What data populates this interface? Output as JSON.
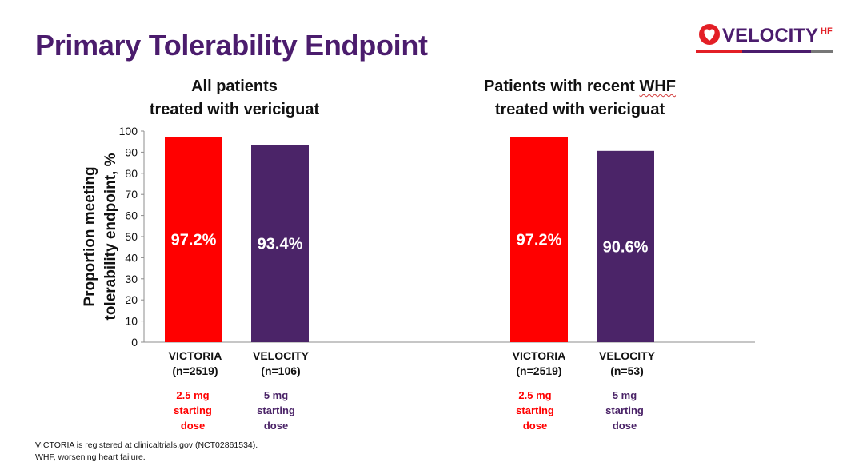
{
  "title": "Primary Tolerability Endpoint",
  "logo": {
    "text": "VELOCITY",
    "superscript": "HF"
  },
  "colors": {
    "victoria": "#ff0000",
    "velocity": "#4b2468",
    "title": "#4b1c6d",
    "victoria_dose": "#ff0000",
    "velocity_dose": "#4b2468"
  },
  "chart_data": [
    {
      "type": "bar",
      "title": "All patients treated with vericiguat",
      "title_lines": [
        "All patients",
        "treated with vericiguat"
      ],
      "ylabel": "Proportion meeting tolerability endpoint, %",
      "ylabel_lines": [
        "Proportion meeting",
        "tolerability endpoint, %"
      ],
      "ylim": [
        0,
        100
      ],
      "yticks": [
        0,
        10,
        20,
        30,
        40,
        50,
        60,
        70,
        80,
        90,
        100
      ],
      "categories": [
        "VICTORIA (n=2519)",
        "VELOCITY (n=106)"
      ],
      "category_lines": [
        [
          "VICTORIA",
          "(n=2519)"
        ],
        [
          "VELOCITY",
          "(n=106)"
        ]
      ],
      "values": [
        97.2,
        93.4
      ],
      "data_labels": [
        "97.2%",
        "93.4%"
      ],
      "dose_lines": [
        [
          "2.5 mg",
          "starting",
          "dose"
        ],
        [
          "5 mg",
          "starting",
          "dose"
        ]
      ]
    },
    {
      "type": "bar",
      "title": "Patients with recent WHF treated with vericiguat",
      "title_lines": [
        "Patients with recent",
        "WHF",
        "treated with vericiguat"
      ],
      "ylim": [
        0,
        100
      ],
      "categories": [
        "VICTORIA (n=2519)",
        "VELOCITY (n=53)"
      ],
      "category_lines": [
        [
          "VICTORIA",
          "(n=2519)"
        ],
        [
          "VELOCITY",
          "(n=53)"
        ]
      ],
      "values": [
        97.2,
        90.6
      ],
      "data_labels": [
        "97.2%",
        "90.6%"
      ],
      "dose_lines": [
        [
          "2.5 mg",
          "starting",
          "dose"
        ],
        [
          "5 mg",
          "starting",
          "dose"
        ]
      ]
    }
  ],
  "footnotes": [
    "VICTORIA is registered at clinicaltrials.gov (NCT02861534).",
    "WHF, worsening heart failure."
  ]
}
